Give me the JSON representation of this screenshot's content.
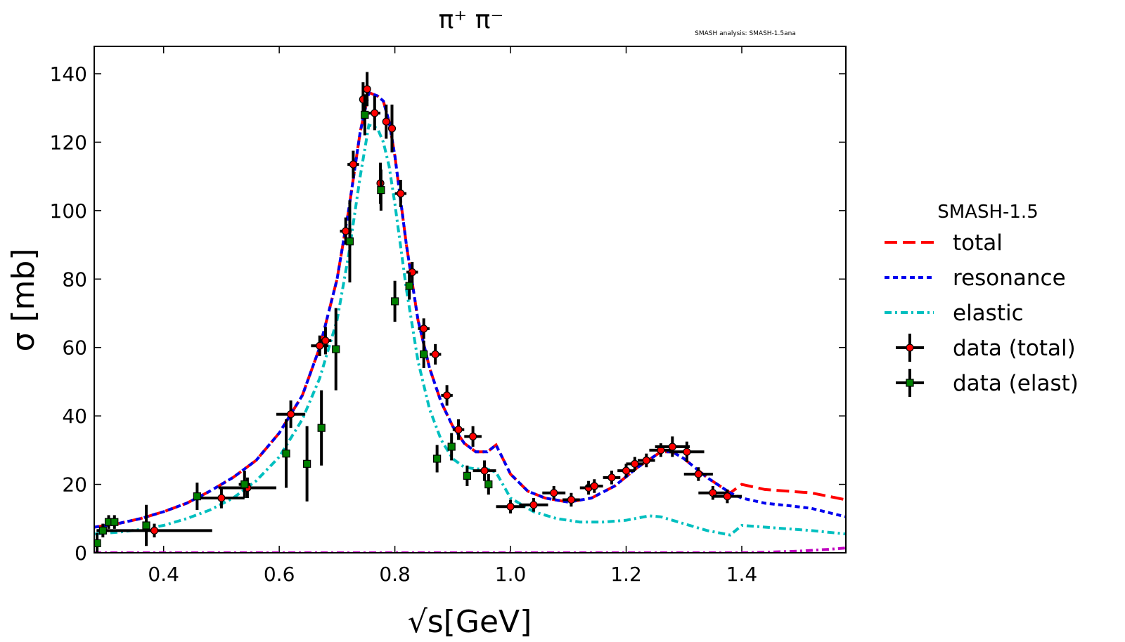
{
  "chart_data": {
    "type": "scatter",
    "title": "π⁺ π⁻",
    "watermark": "SMASH analysis: SMASH-1.5ana",
    "xlabel": "√s[GeV]",
    "ylabel": "σ [mb]",
    "xlim": [
      0.28,
      1.58
    ],
    "ylim": [
      0,
      148
    ],
    "xticks": [
      0.4,
      0.6,
      0.8,
      1.0,
      1.2,
      1.4
    ],
    "xtick_labels": [
      "0.4",
      "0.6",
      "0.8",
      "1.0",
      "1.2",
      "1.4"
    ],
    "yticks": [
      0,
      20,
      40,
      60,
      80,
      100,
      120,
      140
    ],
    "ytick_labels": [
      "0",
      "20",
      "40",
      "60",
      "80",
      "100",
      "120",
      "140"
    ],
    "grid": false,
    "legend": {
      "placement": "right, outside plot",
      "title": "SMASH-1.5",
      "entries": [
        "total",
        "resonance",
        "elastic",
        "data (total)",
        "data (elast)"
      ]
    },
    "colors": {
      "total": "#ff0000",
      "resonance": "#0000ee",
      "elastic": "#00bfbf",
      "other": "#bf00bf",
      "data_total": "#ff0000",
      "data_elast": "#008000"
    },
    "curves": [
      {
        "name": "total",
        "style": "dashed",
        "x": [
          0.28,
          0.32,
          0.36,
          0.4,
          0.44,
          0.48,
          0.52,
          0.56,
          0.6,
          0.64,
          0.67,
          0.7,
          0.72,
          0.74,
          0.755,
          0.77,
          0.78,
          0.79,
          0.8,
          0.82,
          0.84,
          0.86,
          0.88,
          0.9,
          0.92,
          0.94,
          0.96,
          0.975,
          1.0,
          1.03,
          1.06,
          1.1,
          1.14,
          1.18,
          1.22,
          1.26,
          1.28,
          1.3,
          1.34,
          1.38,
          1.4,
          1.44,
          1.48,
          1.52,
          1.58
        ],
        "y": [
          7.5,
          8.5,
          10,
          12,
          14.5,
          18,
          22,
          27,
          35,
          46,
          60,
          80,
          100,
          123,
          134.5,
          133.5,
          132,
          126,
          116,
          90,
          68,
          54,
          44,
          37,
          32,
          29.5,
          29.5,
          31.5,
          23,
          18,
          16,
          14.8,
          16,
          19.5,
          25,
          29.5,
          29.5,
          27.5,
          22,
          17.5,
          20,
          18.5,
          18,
          17.5,
          15.5
        ]
      },
      {
        "name": "resonance",
        "style": "dotted",
        "x": [
          0.28,
          0.32,
          0.36,
          0.4,
          0.44,
          0.48,
          0.52,
          0.56,
          0.6,
          0.64,
          0.67,
          0.7,
          0.72,
          0.74,
          0.755,
          0.77,
          0.78,
          0.79,
          0.8,
          0.82,
          0.84,
          0.86,
          0.88,
          0.9,
          0.92,
          0.94,
          0.96,
          0.975,
          1.0,
          1.03,
          1.06,
          1.1,
          1.14,
          1.18,
          1.22,
          1.26,
          1.28,
          1.3,
          1.34,
          1.38,
          1.4,
          1.44,
          1.48,
          1.52,
          1.58
        ],
        "y": [
          7.5,
          8.5,
          10,
          12,
          14.5,
          18,
          22,
          27,
          35,
          46,
          60,
          80,
          100,
          123,
          134.5,
          133.5,
          132,
          126,
          116,
          90,
          68,
          54,
          44,
          37,
          32,
          29.5,
          29.5,
          31.5,
          23,
          18,
          16,
          14.8,
          16,
          19.5,
          25,
          29.5,
          29.5,
          27.5,
          22,
          17.5,
          16,
          14.5,
          13.8,
          13,
          10.5
        ]
      },
      {
        "name": "elastic",
        "style": "dashdot",
        "x": [
          0.28,
          0.32,
          0.36,
          0.4,
          0.44,
          0.48,
          0.52,
          0.56,
          0.6,
          0.64,
          0.67,
          0.7,
          0.72,
          0.74,
          0.755,
          0.77,
          0.78,
          0.79,
          0.8,
          0.82,
          0.84,
          0.86,
          0.88,
          0.9,
          0.92,
          0.94,
          0.96,
          0.975,
          1.0,
          1.04,
          1.08,
          1.12,
          1.16,
          1.2,
          1.24,
          1.26,
          1.3,
          1.34,
          1.38,
          1.4,
          1.44,
          1.48,
          1.52,
          1.58
        ],
        "y": [
          5.5,
          6,
          6.8,
          8,
          10,
          12.5,
          16,
          21,
          28,
          39,
          51,
          68,
          87,
          110,
          125,
          124,
          120,
          113,
          102,
          77,
          56,
          42,
          33,
          27.5,
          25,
          24.5,
          24.5,
          23.5,
          16,
          12,
          10,
          9,
          9,
          9.5,
          10.8,
          10.5,
          8.5,
          6.5,
          5.2,
          8,
          7.5,
          7,
          6.5,
          5.5
        ]
      },
      {
        "name": "other",
        "style": "dashdot",
        "x": [
          0.28,
          1.4,
          1.45,
          1.5,
          1.55,
          1.58
        ],
        "y": [
          0,
          0,
          0.2,
          0.5,
          1.0,
          1.4
        ]
      }
    ],
    "series": [
      {
        "name": "data (total)",
        "marker": "circle",
        "points": [
          [
            0.384,
            6.5,
            0.1,
            2
          ],
          [
            0.5,
            16,
            0.04,
            3
          ],
          [
            0.545,
            19,
            0.05,
            3
          ],
          [
            0.62,
            40.5,
            0.025,
            4
          ],
          [
            0.67,
            60.5,
            0.015,
            3
          ],
          [
            0.68,
            62,
            0.01,
            4
          ],
          [
            0.715,
            94,
            0.01,
            4
          ],
          [
            0.728,
            113.5,
            0.01,
            4
          ],
          [
            0.745,
            132.5,
            0.005,
            5
          ],
          [
            0.752,
            135.5,
            0.005,
            5
          ],
          [
            0.765,
            128.5,
            0.01,
            5
          ],
          [
            0.775,
            108,
            0.005,
            6
          ],
          [
            0.785,
            126,
            0.005,
            5
          ],
          [
            0.795,
            124,
            0.005,
            7
          ],
          [
            0.81,
            105,
            0.01,
            4
          ],
          [
            0.83,
            82,
            0.01,
            3
          ],
          [
            0.85,
            65.5,
            0.01,
            3
          ],
          [
            0.87,
            58,
            0.01,
            3
          ],
          [
            0.89,
            46,
            0.01,
            3
          ],
          [
            0.91,
            36,
            0.01,
            3
          ],
          [
            0.935,
            34,
            0.015,
            3
          ],
          [
            0.955,
            24,
            0.02,
            3
          ],
          [
            1.0,
            13.5,
            0.025,
            2
          ],
          [
            1.04,
            14,
            0.025,
            2
          ],
          [
            1.075,
            17.5,
            0.02,
            2
          ],
          [
            1.105,
            15.5,
            0.015,
            2
          ],
          [
            1.135,
            19,
            0.015,
            2
          ],
          [
            1.145,
            19.5,
            0.015,
            2
          ],
          [
            1.175,
            22,
            0.015,
            2
          ],
          [
            1.2,
            24,
            0.015,
            2
          ],
          [
            1.215,
            26,
            0.015,
            2
          ],
          [
            1.235,
            27,
            0.015,
            2
          ],
          [
            1.26,
            30,
            0.02,
            2
          ],
          [
            1.28,
            31,
            0.03,
            3
          ],
          [
            1.305,
            29.5,
            0.03,
            3
          ],
          [
            1.325,
            23,
            0.025,
            2
          ],
          [
            1.35,
            17.5,
            0.025,
            2
          ],
          [
            1.375,
            16.5,
            0.025,
            2
          ]
        ]
      },
      {
        "name": "data (elast)",
        "marker": "square",
        "points": [
          [
            0.285,
            2.8,
            0.005,
            3
          ],
          [
            0.295,
            6.5,
            0.01,
            2
          ],
          [
            0.305,
            9,
            0.005,
            2
          ],
          [
            0.315,
            9,
            0.005,
            2
          ],
          [
            0.37,
            8,
            0.005,
            6
          ],
          [
            0.458,
            16.5,
            0.005,
            4
          ],
          [
            0.54,
            20,
            0.01,
            4
          ],
          [
            0.612,
            29,
            0.005,
            10
          ],
          [
            0.648,
            26,
            0.005,
            11
          ],
          [
            0.673,
            36.5,
            0.005,
            11
          ],
          [
            0.698,
            59.5,
            0.005,
            12
          ],
          [
            0.722,
            91,
            0.005,
            12
          ],
          [
            0.748,
            128,
            0.005,
            6
          ],
          [
            0.776,
            106,
            0.005,
            6
          ],
          [
            0.8,
            73.5,
            0.005,
            6
          ],
          [
            0.825,
            78,
            0.005,
            4
          ],
          [
            0.85,
            58,
            0.005,
            4
          ],
          [
            0.873,
            27.5,
            0.005,
            4
          ],
          [
            0.898,
            31,
            0.005,
            4
          ],
          [
            0.925,
            22.5,
            0.005,
            3
          ],
          [
            0.962,
            20,
            0.005,
            3
          ]
        ]
      }
    ]
  }
}
